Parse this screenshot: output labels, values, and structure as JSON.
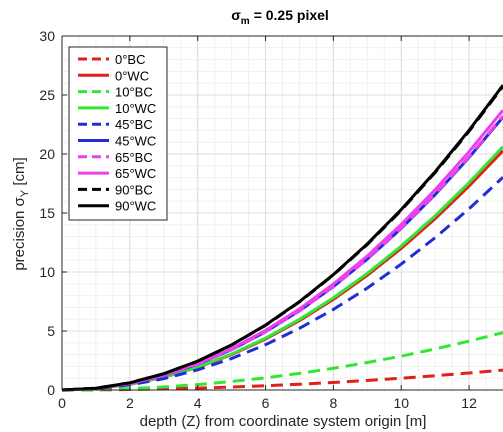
{
  "chart_data": {
    "type": "line",
    "title_prefix": "σ",
    "title_sub": "m",
    "title_suffix": "= 0.25 pixel",
    "xlabel": "depth (Z) from coordinate system origin [m]",
    "ylabel_prefix": "precision σ",
    "ylabel_sub": "Y",
    "ylabel_suffix": " [cm]",
    "xlim": [
      0,
      13
    ],
    "ylim": [
      0,
      30
    ],
    "xticks": [
      0,
      2,
      4,
      6,
      8,
      10,
      12
    ],
    "yticks": [
      0,
      5,
      10,
      15,
      20,
      25,
      30
    ],
    "grid": true,
    "minor_grid": true,
    "legend_position": "top-left",
    "x": [
      0,
      1,
      2,
      3,
      4,
      5,
      6,
      7,
      8,
      9,
      10,
      11,
      12,
      13
    ],
    "series": [
      {
        "name": "0°BC",
        "color": "#e0201b",
        "dash": true,
        "values": [
          0,
          0.01,
          0.04,
          0.09,
          0.16,
          0.25,
          0.36,
          0.49,
          0.64,
          0.81,
          1.0,
          1.21,
          1.44,
          1.69
        ]
      },
      {
        "name": "0°WC",
        "color": "#e0201b",
        "dash": false,
        "values": [
          0,
          0.12,
          0.48,
          1.08,
          1.92,
          3.0,
          4.32,
          5.88,
          7.68,
          9.72,
          12.0,
          14.52,
          17.28,
          20.28
        ]
      },
      {
        "name": "10°BC",
        "color": "#33e633",
        "dash": true,
        "values": [
          0,
          0.03,
          0.11,
          0.26,
          0.46,
          0.72,
          1.03,
          1.41,
          1.84,
          2.33,
          2.87,
          3.48,
          4.14,
          4.86
        ]
      },
      {
        "name": "10°WC",
        "color": "#33e633",
        "dash": false,
        "values": [
          0,
          0.12,
          0.49,
          1.1,
          1.95,
          3.05,
          4.39,
          5.98,
          7.81,
          9.88,
          12.2,
          14.76,
          17.57,
          20.62
        ]
      },
      {
        "name": "45°BC",
        "color": "#1f2ed6",
        "dash": true,
        "values": [
          0,
          0.11,
          0.43,
          0.96,
          1.71,
          2.67,
          3.84,
          5.23,
          6.83,
          8.64,
          10.67,
          12.91,
          15.36,
          18.03
        ]
      },
      {
        "name": "45°WC",
        "color": "#1f2ed6",
        "dash": false,
        "values": [
          0,
          0.14,
          0.55,
          1.23,
          2.19,
          3.42,
          4.93,
          6.71,
          8.76,
          11.09,
          13.69,
          16.56,
          19.71,
          23.13
        ]
      },
      {
        "name": "65°BC",
        "color": "#ee3fee",
        "dash": true,
        "values": [
          0,
          0.14,
          0.55,
          1.24,
          2.2,
          3.43,
          4.94,
          6.73,
          8.79,
          11.12,
          13.73,
          16.62,
          19.78,
          23.21
        ]
      },
      {
        "name": "65°WC",
        "color": "#ee3fee",
        "dash": false,
        "values": [
          0,
          0.14,
          0.56,
          1.26,
          2.24,
          3.51,
          5.05,
          6.87,
          8.98,
          11.36,
          14.03,
          16.97,
          20.2,
          23.71
        ]
      },
      {
        "name": "90°BC",
        "color": "#000000",
        "dash": true,
        "values": [
          0,
          0.15,
          0.61,
          1.37,
          2.44,
          3.81,
          5.48,
          7.46,
          9.75,
          12.33,
          15.23,
          18.43,
          21.93,
          25.74
        ]
      },
      {
        "name": "90°WC",
        "color": "#000000",
        "dash": false,
        "values": [
          0,
          0.15,
          0.61,
          1.38,
          2.45,
          3.82,
          5.5,
          7.49,
          9.78,
          12.38,
          15.29,
          18.5,
          22.01,
          25.83
        ]
      }
    ]
  }
}
